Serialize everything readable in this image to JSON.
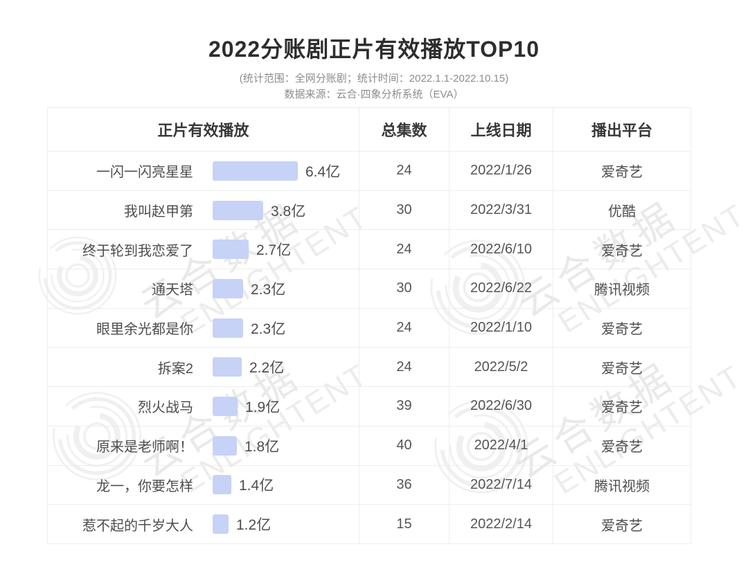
{
  "header": {
    "title": "2022分账剧正片有效播放TOP10",
    "subtitle_line1": "(统计范围：全网分账剧；统计时间：2022.1.1-2022.10.15)",
    "subtitle_line2": "数据来源：云合·四象分析系统（EVA）"
  },
  "table": {
    "columns": {
      "playback": "正片有效播放",
      "episodes": "总集数",
      "date": "上线日期",
      "platform": "播出平台"
    },
    "rows": [
      {
        "title": "一闪一闪亮星星",
        "value": 6.4,
        "value_label": "6.4亿",
        "episodes": "24",
        "date": "2022/1/26",
        "platform": "爱奇艺"
      },
      {
        "title": "我叫赵甲第",
        "value": 3.8,
        "value_label": "3.8亿",
        "episodes": "30",
        "date": "2022/3/31",
        "platform": "优酷"
      },
      {
        "title": "终于轮到我恋爱了",
        "value": 2.7,
        "value_label": "2.7亿",
        "episodes": "24",
        "date": "2022/6/10",
        "platform": "爱奇艺"
      },
      {
        "title": "通天塔",
        "value": 2.3,
        "value_label": "2.3亿",
        "episodes": "30",
        "date": "2022/6/22",
        "platform": "腾讯视频"
      },
      {
        "title": "眼里余光都是你",
        "value": 2.3,
        "value_label": "2.3亿",
        "episodes": "24",
        "date": "2022/1/10",
        "platform": "爱奇艺"
      },
      {
        "title": "拆案2",
        "value": 2.2,
        "value_label": "2.2亿",
        "episodes": "24",
        "date": "2022/5/2",
        "platform": "爱奇艺"
      },
      {
        "title": "烈火战马",
        "value": 1.9,
        "value_label": "1.9亿",
        "episodes": "39",
        "date": "2022/6/30",
        "platform": "爱奇艺"
      },
      {
        "title": "原来是老师啊！",
        "value": 1.8,
        "value_label": "1.8亿",
        "episodes": "40",
        "date": "2022/4/1",
        "platform": "爱奇艺"
      },
      {
        "title": "龙一，你要怎样",
        "value": 1.4,
        "value_label": "1.4亿",
        "episodes": "36",
        "date": "2022/7/14",
        "platform": "腾讯视频"
      },
      {
        "title": "惹不起的千岁大人",
        "value": 1.2,
        "value_label": "1.2亿",
        "episodes": "15",
        "date": "2022/2/14",
        "platform": "爱奇艺"
      }
    ]
  },
  "watermark": {
    "cn": "云合数据",
    "en": "ENLIGHTENT"
  },
  "colors": {
    "bar": "#c6d3f7",
    "divider": "#ededed",
    "title_text": "#2d2d2d",
    "body_text": "#4d4d4d",
    "subtitle_text": "#8c8c8c",
    "watermark": "#d6d6d6"
  },
  "chart_data": {
    "type": "bar",
    "orientation": "horizontal",
    "title": "2022分账剧正片有效播放TOP10",
    "subtitle": "(统计范围：全网分账剧；统计时间：2022.1.1-2022.10.15) 数据来源：云合·四象分析系统（EVA）",
    "series_label": "正片有效播放",
    "unit": "亿",
    "categories": [
      "一闪一闪亮星星",
      "我叫赵甲第",
      "终于轮到我恋爱了",
      "通天塔",
      "眼里余光都是你",
      "拆案2",
      "烈火战马",
      "原来是老师啊！",
      "龙一，你要怎样",
      "惹不起的千岁大人"
    ],
    "values": [
      6.4,
      3.8,
      2.7,
      2.3,
      2.3,
      2.2,
      1.9,
      1.8,
      1.4,
      1.2
    ],
    "data_labels": [
      "6.4亿",
      "3.8亿",
      "2.7亿",
      "2.3亿",
      "2.3亿",
      "2.2亿",
      "1.9亿",
      "1.8亿",
      "1.4亿",
      "1.2亿"
    ],
    "extra_columns": {
      "总集数": [
        24,
        30,
        24,
        30,
        24,
        24,
        39,
        40,
        36,
        15
      ],
      "上线日期": [
        "2022/1/26",
        "2022/3/31",
        "2022/6/10",
        "2022/6/22",
        "2022/1/10",
        "2022/5/2",
        "2022/6/30",
        "2022/4/1",
        "2022/7/14",
        "2022/2/14"
      ],
      "播出平台": [
        "爱奇艺",
        "优酷",
        "爱奇艺",
        "腾讯视频",
        "爱奇艺",
        "爱奇艺",
        "爱奇艺",
        "爱奇艺",
        "腾讯视频",
        "爱奇艺"
      ]
    },
    "grid": false,
    "legend": false
  }
}
